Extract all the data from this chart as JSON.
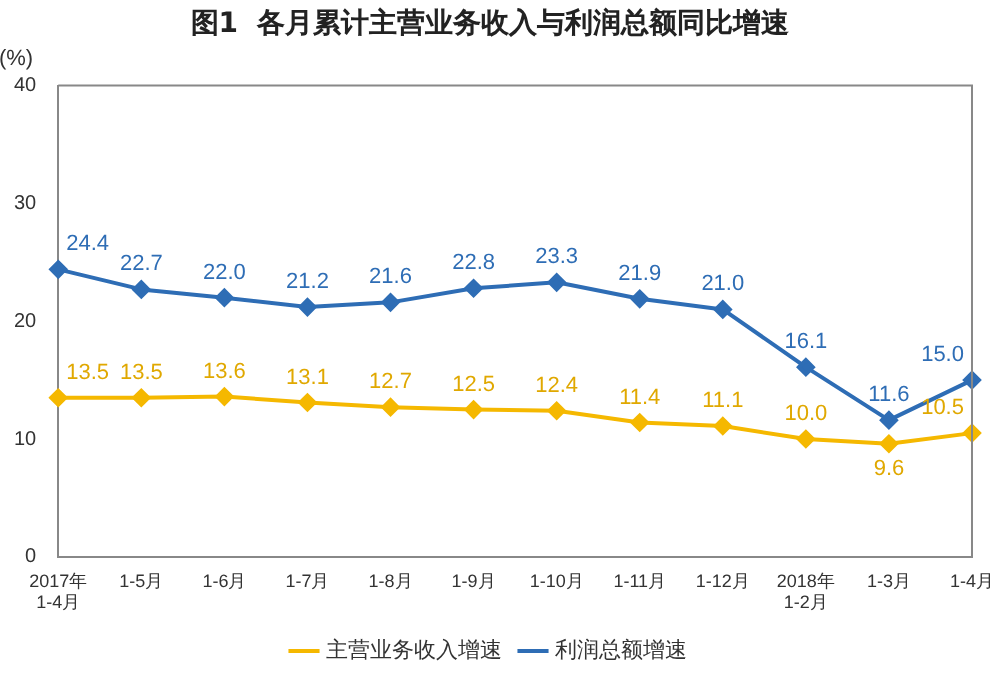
{
  "chart_data": {
    "type": "line",
    "title": "图1  各月累计主营业务收入与利润总额同比增速",
    "ylabel": "(%)",
    "categories": [
      "2017年\n1-4月",
      "1-5月",
      "1-6月",
      "1-7月",
      "1-8月",
      "1-9月",
      "1-10月",
      "1-11月",
      "1-12月",
      "2018年\n1-2月",
      "1-3月",
      "1-4月"
    ],
    "series": [
      {
        "name": "主营业务收入增速",
        "color": "#f5b800",
        "values": [
          13.5,
          13.5,
          13.6,
          13.1,
          12.7,
          12.5,
          12.4,
          11.4,
          11.1,
          10.0,
          9.6,
          10.5
        ],
        "value_labels": [
          "13.5",
          "13.5",
          "13.6",
          "13.1",
          "12.7",
          "12.5",
          "12.4",
          "11.4",
          "11.1",
          "10.0",
          "9.6",
          "10.5"
        ]
      },
      {
        "name": "利润总额增速",
        "color": "#2e6db5",
        "values": [
          24.4,
          22.7,
          22.0,
          21.2,
          21.6,
          22.8,
          23.3,
          21.9,
          21.0,
          16.1,
          11.6,
          15.0
        ],
        "value_labels": [
          "24.4",
          "22.7",
          "22.0",
          "21.2",
          "21.6",
          "22.8",
          "23.3",
          "21.9",
          "21.0",
          "16.1",
          "11.6",
          "15.0"
        ]
      }
    ],
    "ylim": [
      0,
      40
    ],
    "yticks": [
      0,
      10,
      20,
      30,
      40
    ],
    "grid": false,
    "legend": "bottom",
    "marker": "diamond",
    "line_style": "solid"
  }
}
